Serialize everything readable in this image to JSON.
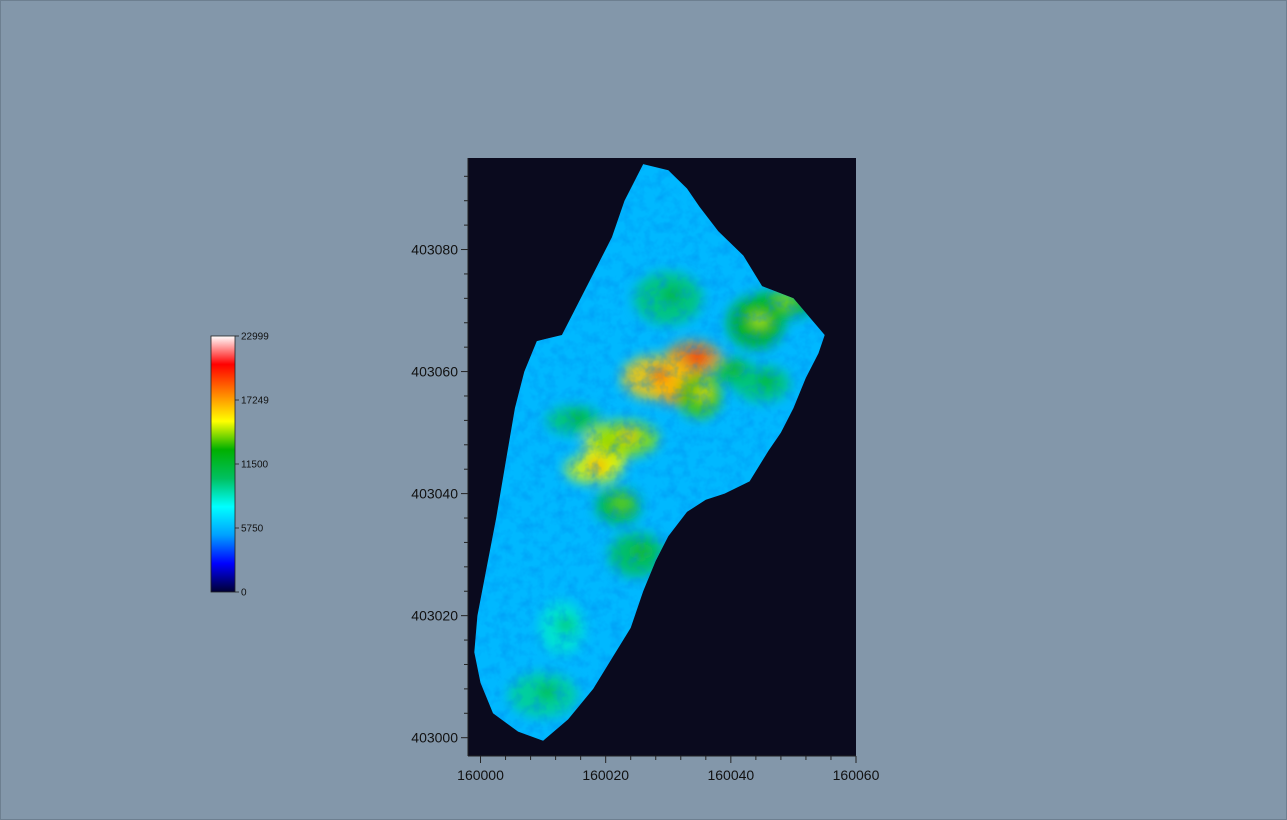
{
  "chart_data": {
    "type": "heatmap",
    "title": "",
    "xlabel": "",
    "ylabel": "",
    "xlim": [
      159998,
      160060
    ],
    "ylim": [
      402997,
      403095
    ],
    "x_ticks": [
      160000,
      160020,
      160040,
      160060
    ],
    "y_ticks": [
      403000,
      403020,
      403040,
      403060,
      403080
    ],
    "colorbar": {
      "min": 0,
      "max": 22999,
      "ticks": [
        0,
        5750,
        11500,
        17249,
        22999
      ],
      "colors": [
        "#000033",
        "#0000ff",
        "#00a0ff",
        "#00ffff",
        "#00c060",
        "#00b000",
        "#ffff00",
        "#ff8000",
        "#ff0000",
        "#ffffff"
      ]
    },
    "background_color": "#0a0a1e",
    "page_color": "#8397aa",
    "survey_outline": [
      [
        160026.0,
        403094.0
      ],
      [
        160030.0,
        403093.0
      ],
      [
        160033.0,
        403090.0
      ],
      [
        160035.0,
        403087.0
      ],
      [
        160038.0,
        403083.0
      ],
      [
        160042.0,
        403079.0
      ],
      [
        160045.0,
        403074.0
      ],
      [
        160050.0,
        403072.0
      ],
      [
        160055.0,
        403066.0
      ],
      [
        160054.0,
        403063.0
      ],
      [
        160052.0,
        403059.0
      ],
      [
        160050.0,
        403054.0
      ],
      [
        160048.0,
        403050.0
      ],
      [
        160046.0,
        403047.0
      ],
      [
        160043.0,
        403042.0
      ],
      [
        160039.0,
        403040.0
      ],
      [
        160036.0,
        403039.0
      ],
      [
        160033.0,
        403037.0
      ],
      [
        160030.0,
        403033.0
      ],
      [
        160028.0,
        403029.0
      ],
      [
        160026.0,
        403024.0
      ],
      [
        160024.0,
        403018.0
      ],
      [
        160021.0,
        403013.0
      ],
      [
        160018.0,
        403008.0
      ],
      [
        160014.0,
        403003.0
      ],
      [
        160010.0,
        402999.5
      ],
      [
        160006.0,
        403001.0
      ],
      [
        160002.0,
        403004.0
      ],
      [
        160000.0,
        403009.0
      ],
      [
        159999.0,
        403014.0
      ],
      [
        159999.5,
        403020.0
      ],
      [
        160001.0,
        403028.0
      ],
      [
        160002.5,
        403036.0
      ],
      [
        160004.0,
        403045.0
      ],
      [
        160005.5,
        403054.0
      ],
      [
        160007.0,
        403060.0
      ],
      [
        160009.0,
        403065.0
      ],
      [
        160011.0,
        403065.5
      ],
      [
        160013.0,
        403066.0
      ],
      [
        160015.0,
        403070.0
      ],
      [
        160018.0,
        403076.0
      ],
      [
        160021.0,
        403082.0
      ],
      [
        160023.0,
        403088.0
      ],
      [
        160025.0,
        403092.0
      ]
    ],
    "hotspots": [
      {
        "x": 160031,
        "y": 403057,
        "value": 18500
      },
      {
        "x": 160034,
        "y": 403062,
        "value": 17800
      },
      {
        "x": 160028,
        "y": 403059,
        "value": 16500
      },
      {
        "x": 160020,
        "y": 403047,
        "value": 15500
      },
      {
        "x": 160018,
        "y": 403044,
        "value": 15000
      },
      {
        "x": 160023,
        "y": 403049,
        "value": 14200
      },
      {
        "x": 160035,
        "y": 403056,
        "value": 13500
      },
      {
        "x": 160044,
        "y": 403068,
        "value": 12500
      },
      {
        "x": 160048,
        "y": 403071,
        "value": 11800
      },
      {
        "x": 160022,
        "y": 403038,
        "value": 11500
      },
      {
        "x": 160025,
        "y": 403030,
        "value": 10500
      },
      {
        "x": 160030,
        "y": 403072,
        "value": 10000
      },
      {
        "x": 160040,
        "y": 403060,
        "value": 10500
      },
      {
        "x": 160045,
        "y": 403058,
        "value": 10000
      },
      {
        "x": 160010,
        "y": 403007,
        "value": 9500
      },
      {
        "x": 160013,
        "y": 403018,
        "value": 8500
      },
      {
        "x": 160015,
        "y": 403052,
        "value": 10000
      }
    ],
    "base_value": 5750
  }
}
